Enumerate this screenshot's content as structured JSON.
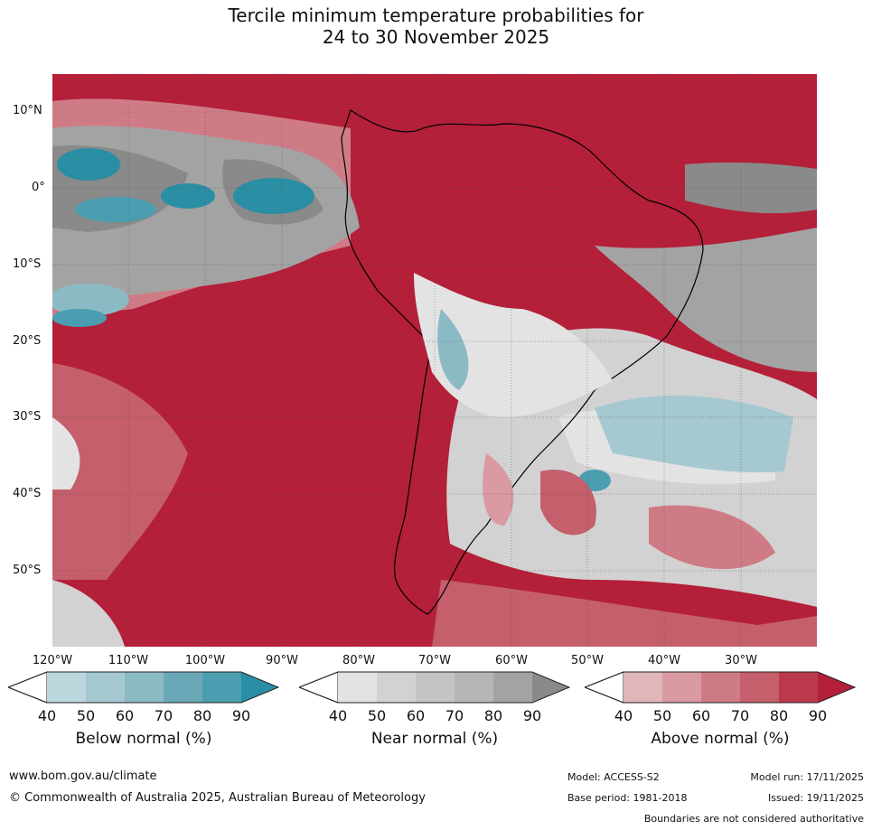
{
  "title": {
    "line1": "Tercile minimum temperature probabilities for",
    "line2": "24 to 30 November 2025"
  },
  "lat_labels": [
    "10°N",
    "0°",
    "10°S",
    "20°S",
    "30°S",
    "40°S",
    "50°S"
  ],
  "lon_labels": [
    "120°W",
    "110°W",
    "100°W",
    "90°W",
    "80°W",
    "70°W",
    "60°W",
    "50°W",
    "40°W",
    "30°W"
  ],
  "colors": {
    "below": [
      "#bcd6dd",
      "#a5c8d1",
      "#8cbac4",
      "#6aa8b8",
      "#4b9db0",
      "#2a8ea4"
    ],
    "near": [
      "#e3e3e3",
      "#d2d2d2",
      "#c4c4c4",
      "#b5b5b5",
      "#a3a3a3",
      "#8a8a8a"
    ],
    "above": [
      "#e0b6bb",
      "#d99aa2",
      "#cf7b85",
      "#c45f6b",
      "#ba3a4c",
      "#b41f39"
    ]
  },
  "legends": [
    {
      "key": "below",
      "label": "Below normal (%)",
      "ticks": [
        "40",
        "50",
        "60",
        "70",
        "80",
        "90"
      ]
    },
    {
      "key": "near",
      "label": "Near normal (%)",
      "ticks": [
        "40",
        "50",
        "60",
        "70",
        "80",
        "90"
      ]
    },
    {
      "key": "above",
      "label": "Above normal (%)",
      "ticks": [
        "40",
        "50",
        "60",
        "70",
        "80",
        "90"
      ]
    }
  ],
  "footer": {
    "url": "www.bom.gov.au/climate",
    "copyright": "© Commonwealth of Australia 2025, Australian Bureau of Meteorology",
    "model": "Model: ACCESS-S2",
    "base_period": "Base period: 1981-2018",
    "model_run": "Model run: 17/11/2025",
    "issued": "Issued: 19/11/2025",
    "disclaimer": "Boundaries are not considered authoritative"
  }
}
